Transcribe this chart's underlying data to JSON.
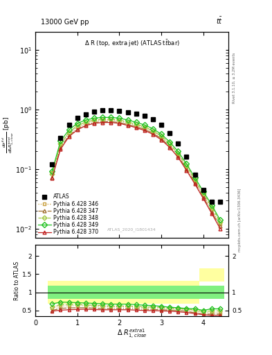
{
  "x_bins": [
    0.4,
    0.6,
    0.8,
    1.0,
    1.2,
    1.4,
    1.6,
    1.8,
    2.0,
    2.2,
    2.4,
    2.6,
    2.8,
    3.0,
    3.2,
    3.4,
    3.6,
    3.8,
    4.0,
    4.2,
    4.4
  ],
  "atlas_y": [
    0.12,
    0.33,
    0.55,
    0.72,
    0.82,
    0.92,
    0.96,
    0.97,
    0.95,
    0.9,
    0.85,
    0.78,
    0.68,
    0.55,
    0.4,
    0.27,
    0.16,
    0.08,
    0.045,
    0.028,
    0.028
  ],
  "py346_y": [
    0.088,
    0.255,
    0.4,
    0.51,
    0.59,
    0.645,
    0.665,
    0.665,
    0.645,
    0.595,
    0.545,
    0.495,
    0.425,
    0.345,
    0.255,
    0.175,
    0.107,
    0.063,
    0.037,
    0.021,
    0.012
  ],
  "py347_y": [
    0.073,
    0.23,
    0.365,
    0.475,
    0.555,
    0.605,
    0.625,
    0.625,
    0.605,
    0.56,
    0.515,
    0.465,
    0.4,
    0.325,
    0.24,
    0.165,
    0.1,
    0.059,
    0.034,
    0.019,
    0.011
  ],
  "py348_y": [
    0.083,
    0.265,
    0.415,
    0.535,
    0.615,
    0.665,
    0.685,
    0.685,
    0.665,
    0.615,
    0.565,
    0.51,
    0.44,
    0.36,
    0.265,
    0.183,
    0.113,
    0.067,
    0.039,
    0.023,
    0.013
  ],
  "py349_y": [
    0.093,
    0.295,
    0.455,
    0.585,
    0.665,
    0.715,
    0.735,
    0.735,
    0.715,
    0.665,
    0.61,
    0.55,
    0.475,
    0.385,
    0.285,
    0.197,
    0.122,
    0.072,
    0.042,
    0.025,
    0.014
  ],
  "py370_y": [
    0.071,
    0.215,
    0.35,
    0.455,
    0.535,
    0.585,
    0.605,
    0.605,
    0.585,
    0.54,
    0.495,
    0.445,
    0.383,
    0.31,
    0.23,
    0.157,
    0.095,
    0.056,
    0.032,
    0.018,
    0.01
  ],
  "ratio_346": [
    0.57,
    0.62,
    0.63,
    0.63,
    0.63,
    0.62,
    0.61,
    0.6,
    0.6,
    0.6,
    0.59,
    0.58,
    0.57,
    0.56,
    0.55,
    0.54,
    0.52,
    0.485,
    0.44,
    0.44,
    0.44
  ],
  "ratio_347": [
    0.5,
    0.56,
    0.57,
    0.575,
    0.575,
    0.565,
    0.555,
    0.555,
    0.555,
    0.555,
    0.545,
    0.535,
    0.525,
    0.52,
    0.51,
    0.5,
    0.48,
    0.435,
    0.4,
    0.4,
    0.4
  ],
  "ratio_348": [
    0.6,
    0.665,
    0.665,
    0.665,
    0.655,
    0.645,
    0.635,
    0.625,
    0.625,
    0.625,
    0.615,
    0.6,
    0.595,
    0.585,
    0.565,
    0.555,
    0.535,
    0.515,
    0.47,
    0.49,
    0.49
  ],
  "ratio_349": [
    0.68,
    0.73,
    0.725,
    0.715,
    0.705,
    0.695,
    0.685,
    0.675,
    0.675,
    0.675,
    0.66,
    0.645,
    0.635,
    0.615,
    0.59,
    0.575,
    0.555,
    0.545,
    0.505,
    0.545,
    0.545
  ],
  "ratio_370": [
    0.48,
    0.51,
    0.52,
    0.53,
    0.535,
    0.525,
    0.52,
    0.52,
    0.52,
    0.52,
    0.51,
    0.5,
    0.495,
    0.49,
    0.48,
    0.465,
    0.445,
    0.415,
    0.385,
    0.365,
    0.365
  ],
  "band_x_edges": [
    0.3,
    0.5,
    0.7,
    0.9,
    1.1,
    1.3,
    1.5,
    1.7,
    1.9,
    2.1,
    2.3,
    2.5,
    2.7,
    2.9,
    3.1,
    3.3,
    3.5,
    3.7,
    3.9,
    4.1,
    4.3,
    4.5
  ],
  "band_yellow_lo": [
    0.68,
    0.68,
    0.68,
    0.68,
    0.68,
    0.68,
    0.68,
    0.68,
    0.68,
    0.68,
    0.68,
    0.68,
    0.68,
    0.68,
    0.68,
    0.68,
    0.68,
    0.68,
    1.3,
    1.3,
    1.3
  ],
  "band_yellow_hi": [
    1.32,
    1.32,
    1.32,
    1.32,
    1.32,
    1.32,
    1.32,
    1.32,
    1.32,
    1.32,
    1.32,
    1.32,
    1.32,
    1.32,
    1.32,
    1.32,
    1.32,
    1.32,
    1.65,
    1.65,
    1.65
  ],
  "band_green_lo": [
    0.82,
    0.82,
    0.82,
    0.82,
    0.82,
    0.82,
    0.82,
    0.82,
    0.82,
    0.82,
    0.82,
    0.82,
    0.82,
    0.82,
    0.82,
    0.82,
    0.82,
    0.82,
    0.82,
    0.82,
    0.82
  ],
  "band_green_hi": [
    1.18,
    1.18,
    1.18,
    1.18,
    1.18,
    1.18,
    1.18,
    1.18,
    1.18,
    1.18,
    1.18,
    1.18,
    1.18,
    1.18,
    1.18,
    1.18,
    1.18,
    1.18,
    1.18,
    1.18,
    1.18
  ],
  "color_346": "#c8a040",
  "color_347": "#a07030",
  "color_348": "#a0c840",
  "color_349": "#20c020",
  "color_370": "#c02020",
  "color_atlas": "black",
  "color_yellow": "#ffffa0",
  "color_green": "#80f080",
  "ylim_main": [
    0.007,
    20
  ],
  "ylim_ratio": [
    0.35,
    2.3
  ],
  "xlim": [
    0.0,
    4.6
  ],
  "title_left": "13000 GeV pp",
  "title_right": "tt̅",
  "plot_label": "Δ R (top, extra jet) (ATLAS ttbar)",
  "watermark": "ATLAS_2020_I1801434",
  "rivet_text": "Rivet 3.1.10, ≥ 3.2M events",
  "mcplots_text": "mcplots.cern.ch [arXiv:1306.3436]"
}
